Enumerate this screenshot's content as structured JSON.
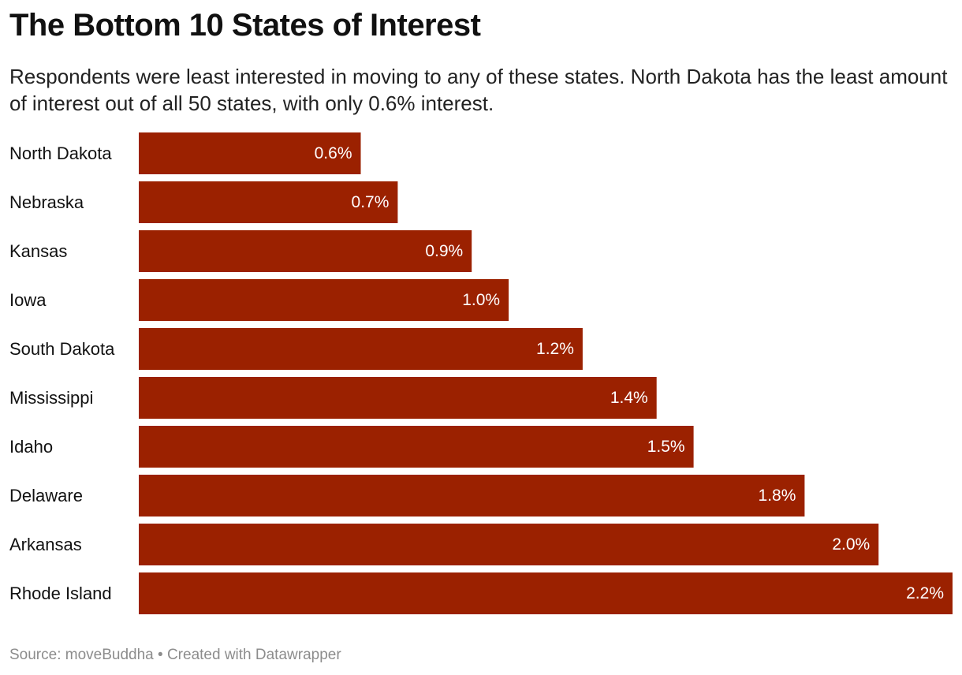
{
  "title": "The Bottom 10 States of Interest",
  "subtitle": "Respondents were least interested in moving to any of these states. North Dakota has the least amount of interest out of all 50 states, with only 0.6% interest.",
  "footer": {
    "source_label": "Source:",
    "source": "moveBuddha",
    "separator": "•",
    "credit": "Created with Datawrapper"
  },
  "colors": {
    "bar": "#9b2100",
    "bar_label": "#ffffff",
    "category_label": "#111111"
  },
  "chart_data": {
    "type": "bar",
    "orientation": "horizontal",
    "title": "The Bottom 10 States of Interest",
    "xlabel": "",
    "ylabel": "",
    "grid": false,
    "value_suffix": "%",
    "xlim": [
      0,
      2.2
    ],
    "categories": [
      "North Dakota",
      "Nebraska",
      "Kansas",
      "Iowa",
      "South Dakota",
      "Mississippi",
      "Idaho",
      "Delaware",
      "Arkansas",
      "Rhode Island"
    ],
    "values": [
      0.6,
      0.7,
      0.9,
      1.0,
      1.2,
      1.4,
      1.5,
      1.8,
      2.0,
      2.2
    ],
    "labels": [
      "0.6%",
      "0.7%",
      "0.9%",
      "1.0%",
      "1.2%",
      "1.4%",
      "1.5%",
      "1.8%",
      "2.0%",
      "2.2%"
    ]
  }
}
